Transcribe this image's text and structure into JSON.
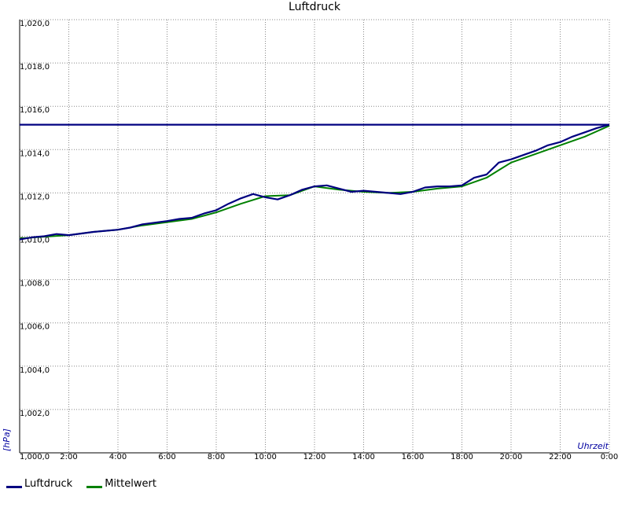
{
  "chart_data": {
    "type": "line",
    "title": "Luftdruck",
    "xlabel": "Uhrzeit",
    "ylabel": "[hPa]",
    "xlim": [
      0,
      24
    ],
    "ylim": [
      1000,
      1020
    ],
    "x_tick_labels": [
      "2:00",
      "4:00",
      "6:00",
      "8:00",
      "10:00",
      "12:00",
      "14:00",
      "16:00",
      "18:00",
      "20:00",
      "22:00",
      "0:00"
    ],
    "y_tick_labels": [
      "1,000,0",
      "1,002,0",
      "1,004,0",
      "1,006,0",
      "1,008,0",
      "1,010,0",
      "1,012,0",
      "1,014,0",
      "1,016,0",
      "1,018,0",
      "1,020,0"
    ],
    "grid": true,
    "legend_position": "bottom-left",
    "series": [
      {
        "name": "Luftdruck",
        "color": "#000080",
        "x": [
          0,
          0.5,
          1,
          1.5,
          2,
          3,
          4,
          4.5,
          5,
          6,
          6.5,
          7,
          7.5,
          8,
          8.5,
          9,
          9.5,
          10,
          10.5,
          11,
          11.5,
          12,
          12.5,
          13,
          13.5,
          14,
          14.5,
          15,
          15.5,
          16,
          16.5,
          17,
          17.5,
          18,
          18.5,
          19,
          19.5,
          20,
          20.5,
          21,
          21.5,
          22,
          22.5,
          23,
          23.5,
          24
        ],
        "values": [
          1009.85,
          1009.95,
          1010.0,
          1010.1,
          1010.05,
          1010.2,
          1010.3,
          1010.4,
          1010.55,
          1010.7,
          1010.8,
          1010.85,
          1011.05,
          1011.2,
          1011.5,
          1011.75,
          1011.95,
          1011.8,
          1011.7,
          1011.9,
          1012.15,
          1012.3,
          1012.35,
          1012.2,
          1012.05,
          1012.1,
          1012.05,
          1012.0,
          1011.95,
          1012.05,
          1012.25,
          1012.3,
          1012.3,
          1012.35,
          1012.7,
          1012.85,
          1013.4,
          1013.55,
          1013.75,
          1013.95,
          1014.2,
          1014.35,
          1014.6,
          1014.8,
          1015.0,
          1015.15
        ]
      },
      {
        "name": "Mittelwert",
        "color": "#008000",
        "x": [
          0,
          1,
          2,
          3,
          4,
          5,
          6,
          7,
          8,
          9,
          10,
          11,
          12,
          13,
          14,
          15,
          16,
          17,
          18,
          19,
          20,
          21,
          22,
          23,
          24
        ],
        "values": [
          1009.9,
          1009.98,
          1010.05,
          1010.2,
          1010.3,
          1010.5,
          1010.65,
          1010.8,
          1011.1,
          1011.5,
          1011.85,
          1011.9,
          1012.3,
          1012.15,
          1012.05,
          1012.0,
          1012.05,
          1012.2,
          1012.3,
          1012.7,
          1013.4,
          1013.8,
          1014.2,
          1014.6,
          1015.1
        ]
      },
      {
        "name": "",
        "color": "#000080",
        "x": [
          0,
          24
        ],
        "values": [
          1015.15,
          1015.15
        ]
      }
    ]
  }
}
